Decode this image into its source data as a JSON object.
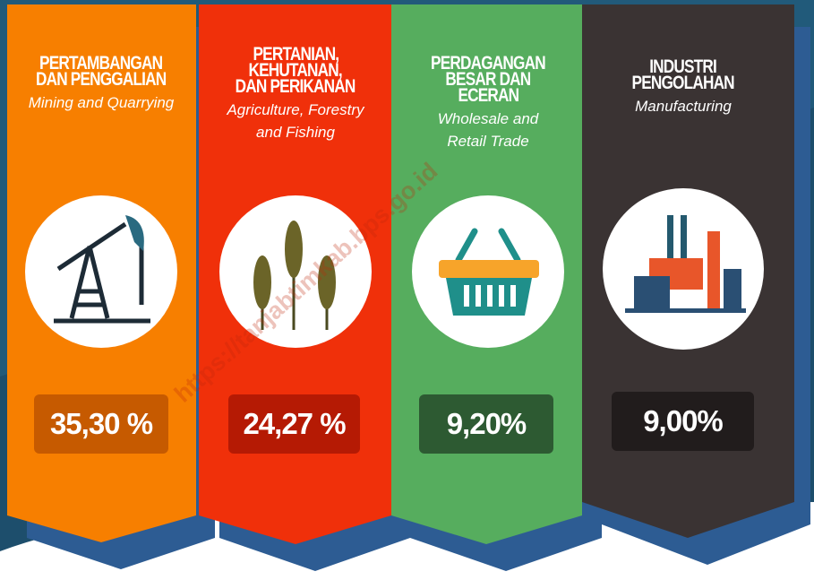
{
  "panels": [
    {
      "title": [
        "PERTAMBANGAN",
        "DAN PENGGALIAN"
      ],
      "subtitle": [
        "Mining and Quarrying"
      ],
      "value": "35,30 %"
    },
    {
      "title": [
        "PERTANIAN,",
        "KEHUTANAN,",
        "DAN PERIKANAN"
      ],
      "subtitle": [
        "Agriculture, Forestry",
        "and Fishing"
      ],
      "value": "24,27 %"
    },
    {
      "title": [
        "PERDAGANGAN",
        "BESAR DAN",
        "ECERAN"
      ],
      "subtitle": [
        "Wholesale and",
        "Retail Trade"
      ],
      "value": "9,20%"
    },
    {
      "title": [
        "INDUSTRI",
        "PENGOLAHAN"
      ],
      "subtitle": [
        "Manufacturing"
      ],
      "value": "9,00%"
    }
  ],
  "watermark": "https://tanjabtimkab.bps.go.id"
}
